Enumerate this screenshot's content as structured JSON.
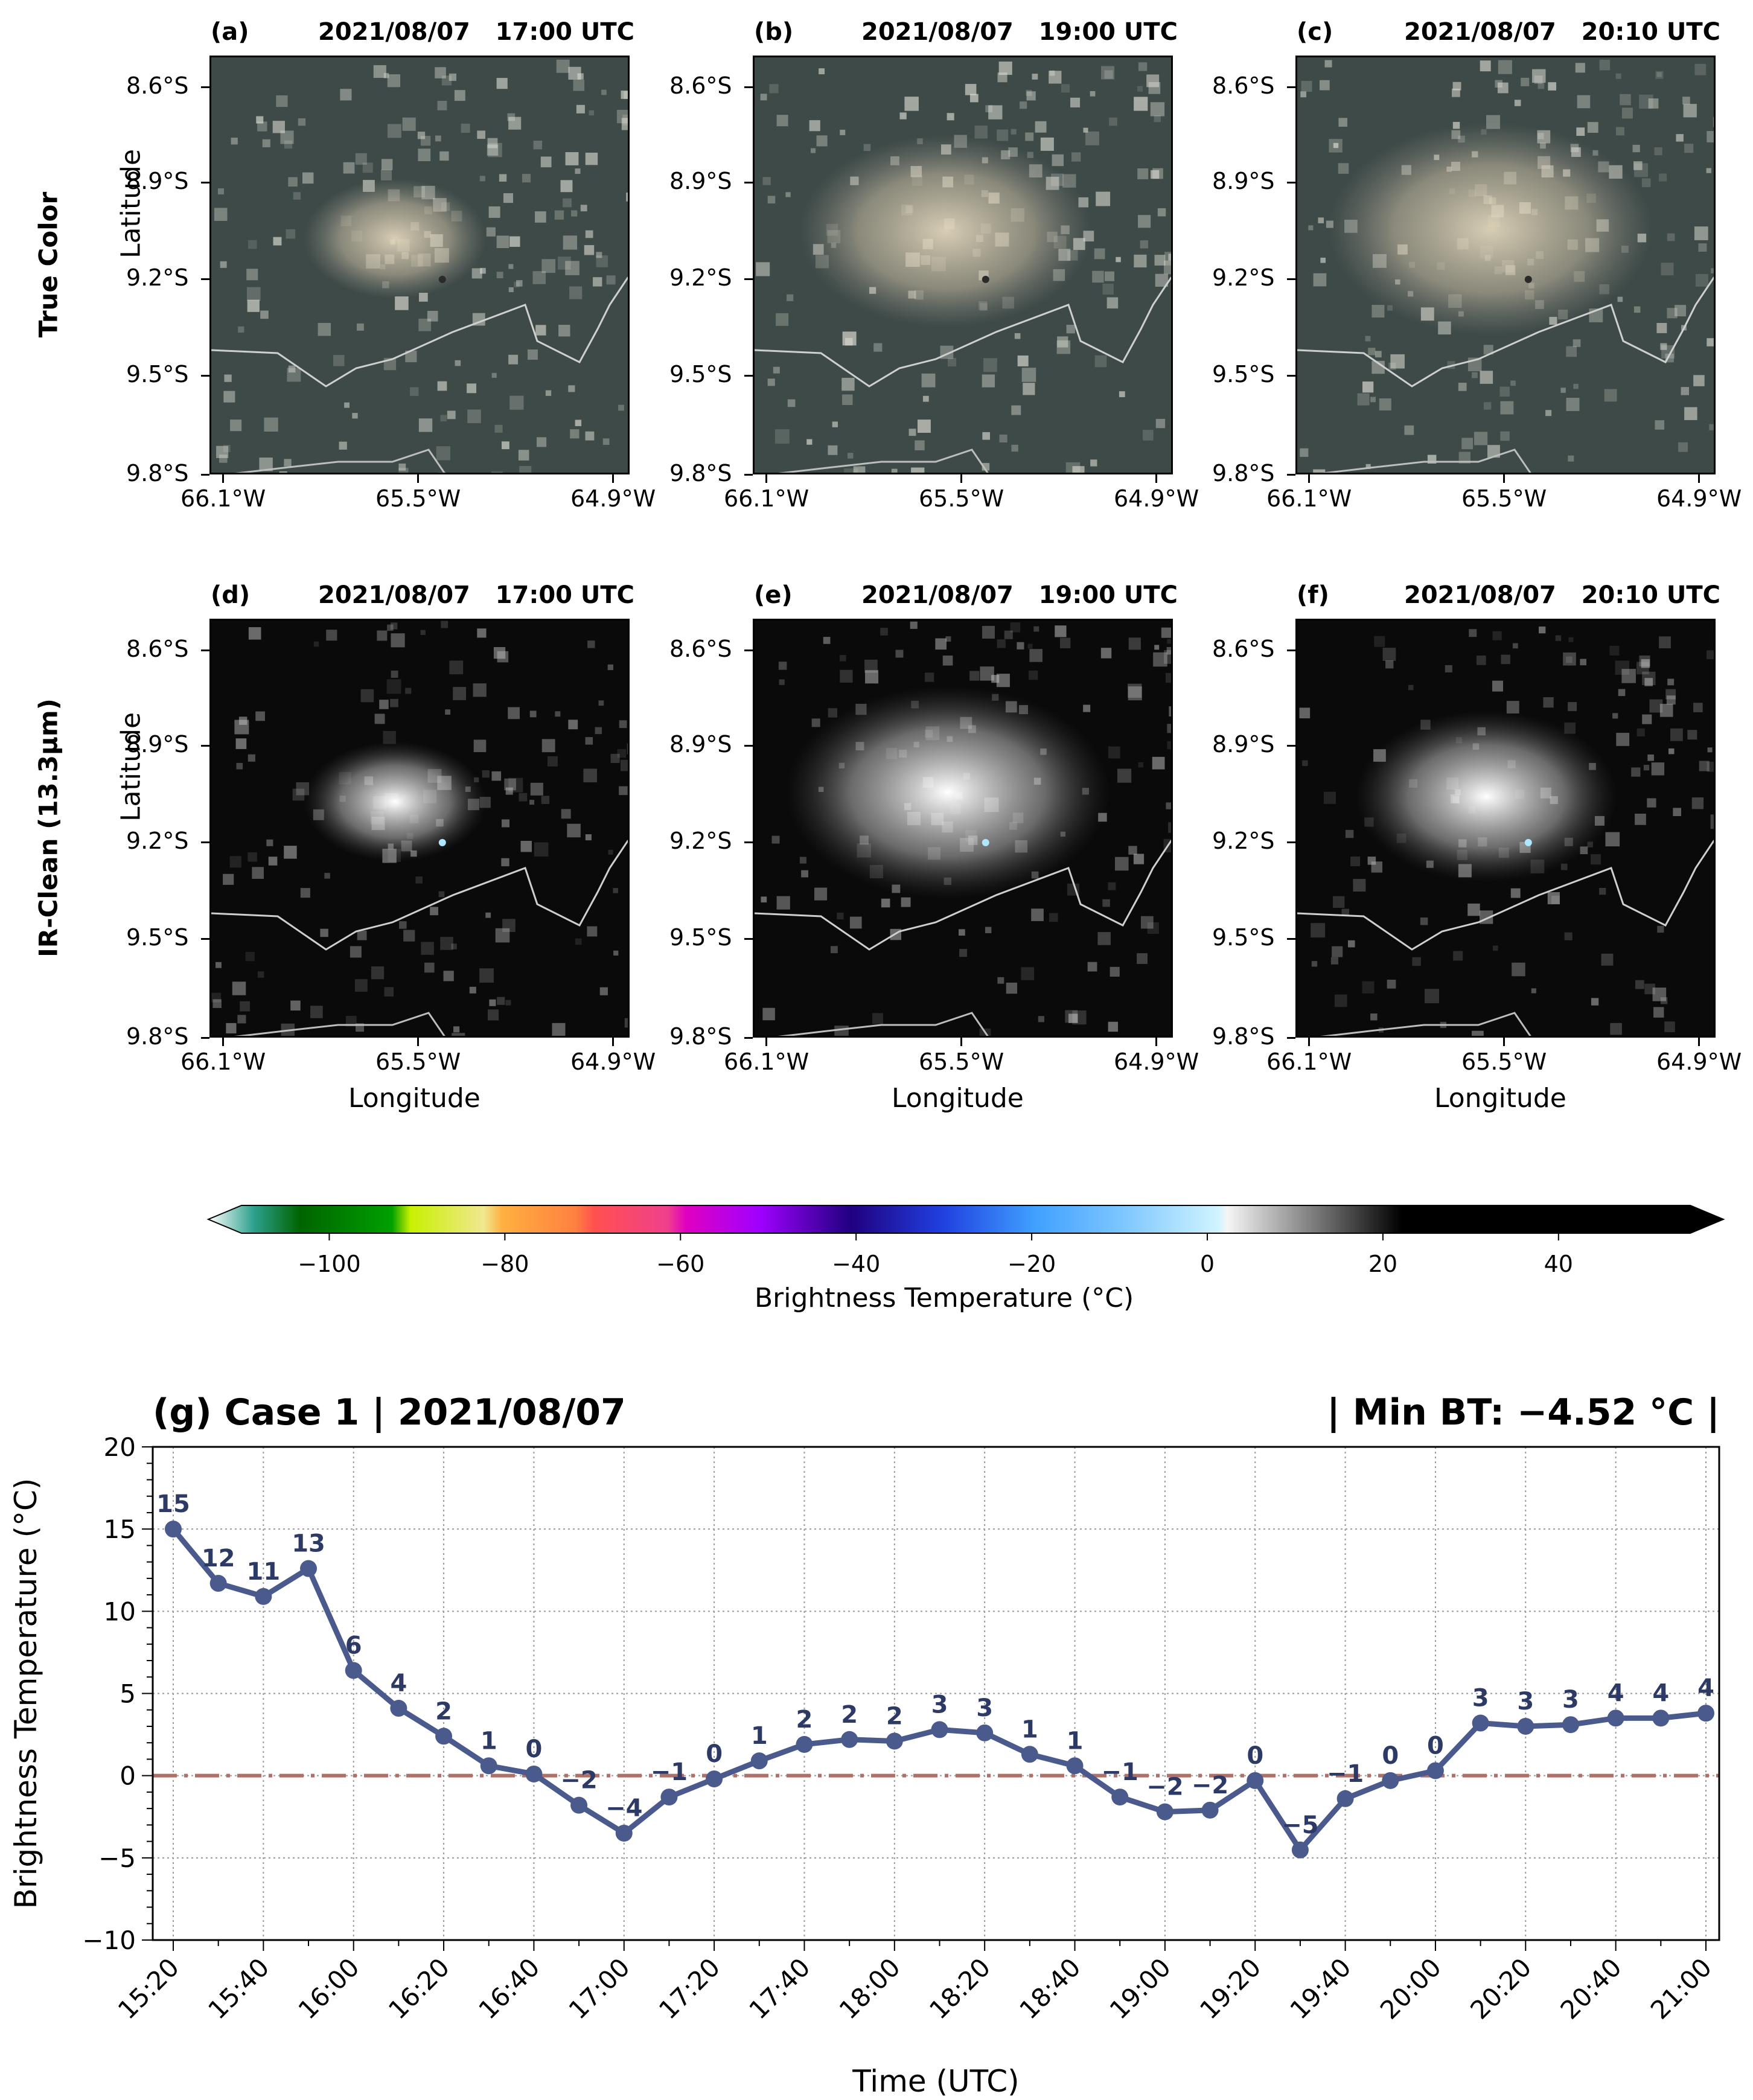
{
  "row_labels": [
    "True Color",
    "IR-Clean (13.3µm)"
  ],
  "panels": [
    {
      "letter": "(a)",
      "time": "2021/08/07   17:00 UTC",
      "row": 0,
      "col": 0,
      "style": "truecolor",
      "intensity": 0.35
    },
    {
      "letter": "(b)",
      "time": "2021/08/07   19:00 UTC",
      "row": 0,
      "col": 1,
      "style": "truecolor",
      "intensity": 0.7
    },
    {
      "letter": "(c)",
      "time": "2021/08/07   20:10 UTC",
      "row": 0,
      "col": 2,
      "style": "truecolor",
      "intensity": 0.8
    },
    {
      "letter": "(d)",
      "time": "2021/08/07   17:00 UTC",
      "row": 1,
      "col": 0,
      "style": "ir",
      "intensity": 0.35
    },
    {
      "letter": "(e)",
      "time": "2021/08/07   19:00 UTC",
      "row": 1,
      "col": 1,
      "style": "ir",
      "intensity": 0.8
    },
    {
      "letter": "(f)",
      "time": "2021/08/07   20:10 UTC",
      "row": 1,
      "col": 2,
      "style": "ir",
      "intensity": 0.6
    }
  ],
  "map_axes": {
    "ylabel": "Latitude",
    "xlabel": "Longitude",
    "lat_ticks": [
      "8.6°S",
      "8.9°S",
      "9.2°S",
      "9.5°S",
      "9.8°S"
    ],
    "lon_ticks": [
      "66.1°W",
      "65.5°W",
      "64.9°W"
    ]
  },
  "colorbar": {
    "label": "Brightness Temperature (°C)",
    "range": [
      -110,
      55
    ],
    "ticks": [
      "−100",
      "−80",
      "−60",
      "−40",
      "−20",
      "0",
      "20",
      "40"
    ],
    "tick_values": [
      -100,
      -80,
      -60,
      -40,
      -20,
      0,
      20,
      40
    ]
  },
  "chart_title_left": "(g) Case 1 | 2021/08/07",
  "chart_title_right": "| Min BT: −4.52 °C |",
  "chart_data": {
    "type": "line",
    "title": "(g) Case 1 | 2021/08/07",
    "xlabel": "Time (UTC)",
    "ylabel": "Brightness Temperature (°C)",
    "ylim": [
      -10,
      20
    ],
    "yticks": [
      -10,
      -5,
      0,
      5,
      10,
      15,
      20
    ],
    "ytick_labels": [
      "−10",
      "−5",
      "0",
      "5",
      "10",
      "15",
      "20"
    ],
    "xtick_labels": [
      "15:20",
      "15:40",
      "16:00",
      "16:20",
      "16:40",
      "17:00",
      "17:20",
      "17:40",
      "18:00",
      "18:20",
      "18:40",
      "19:00",
      "19:20",
      "19:40",
      "20:00",
      "20:20",
      "20:40",
      "21:00"
    ],
    "x": [
      "15:20",
      "15:30",
      "15:40",
      "15:50",
      "16:00",
      "16:10",
      "16:20",
      "16:30",
      "16:40",
      "16:50",
      "17:00",
      "17:10",
      "17:20",
      "17:30",
      "17:40",
      "17:50",
      "18:00",
      "18:10",
      "18:20",
      "18:30",
      "18:40",
      "18:50",
      "19:00",
      "19:10",
      "19:20",
      "19:30",
      "19:40",
      "19:50",
      "20:00",
      "20:10",
      "20:20",
      "20:30",
      "20:40",
      "20:50",
      "21:00"
    ],
    "series": [
      {
        "values": [
          15.0,
          11.7,
          10.9,
          12.6,
          6.4,
          4.1,
          2.4,
          0.6,
          0.1,
          -1.8,
          -3.5,
          -1.3,
          -0.2,
          0.9,
          1.9,
          2.2,
          2.1,
          2.8,
          2.6,
          1.3,
          0.6,
          -1.3,
          -2.2,
          -2.1,
          -0.3,
          -4.52,
          -1.4,
          -0.3,
          0.3,
          3.2,
          3.0,
          3.1,
          3.5,
          3.5,
          3.8
        ],
        "labels": [
          "15",
          "12",
          "11",
          "13",
          "6",
          "4",
          "2",
          "1",
          "0",
          "−2",
          "−4",
          "−1",
          "0",
          "1",
          "2",
          "2",
          "2",
          "3",
          "3",
          "1",
          "1",
          "−1",
          "−2",
          "−2",
          "0",
          "−5",
          "−1",
          "0",
          "0",
          "3",
          "3",
          "3",
          "4",
          "4",
          "4"
        ],
        "color": "#4a5a8c"
      }
    ],
    "reference_line": {
      "y": 0,
      "color": "#b07068",
      "style": "dash-dot"
    },
    "grid": true
  }
}
